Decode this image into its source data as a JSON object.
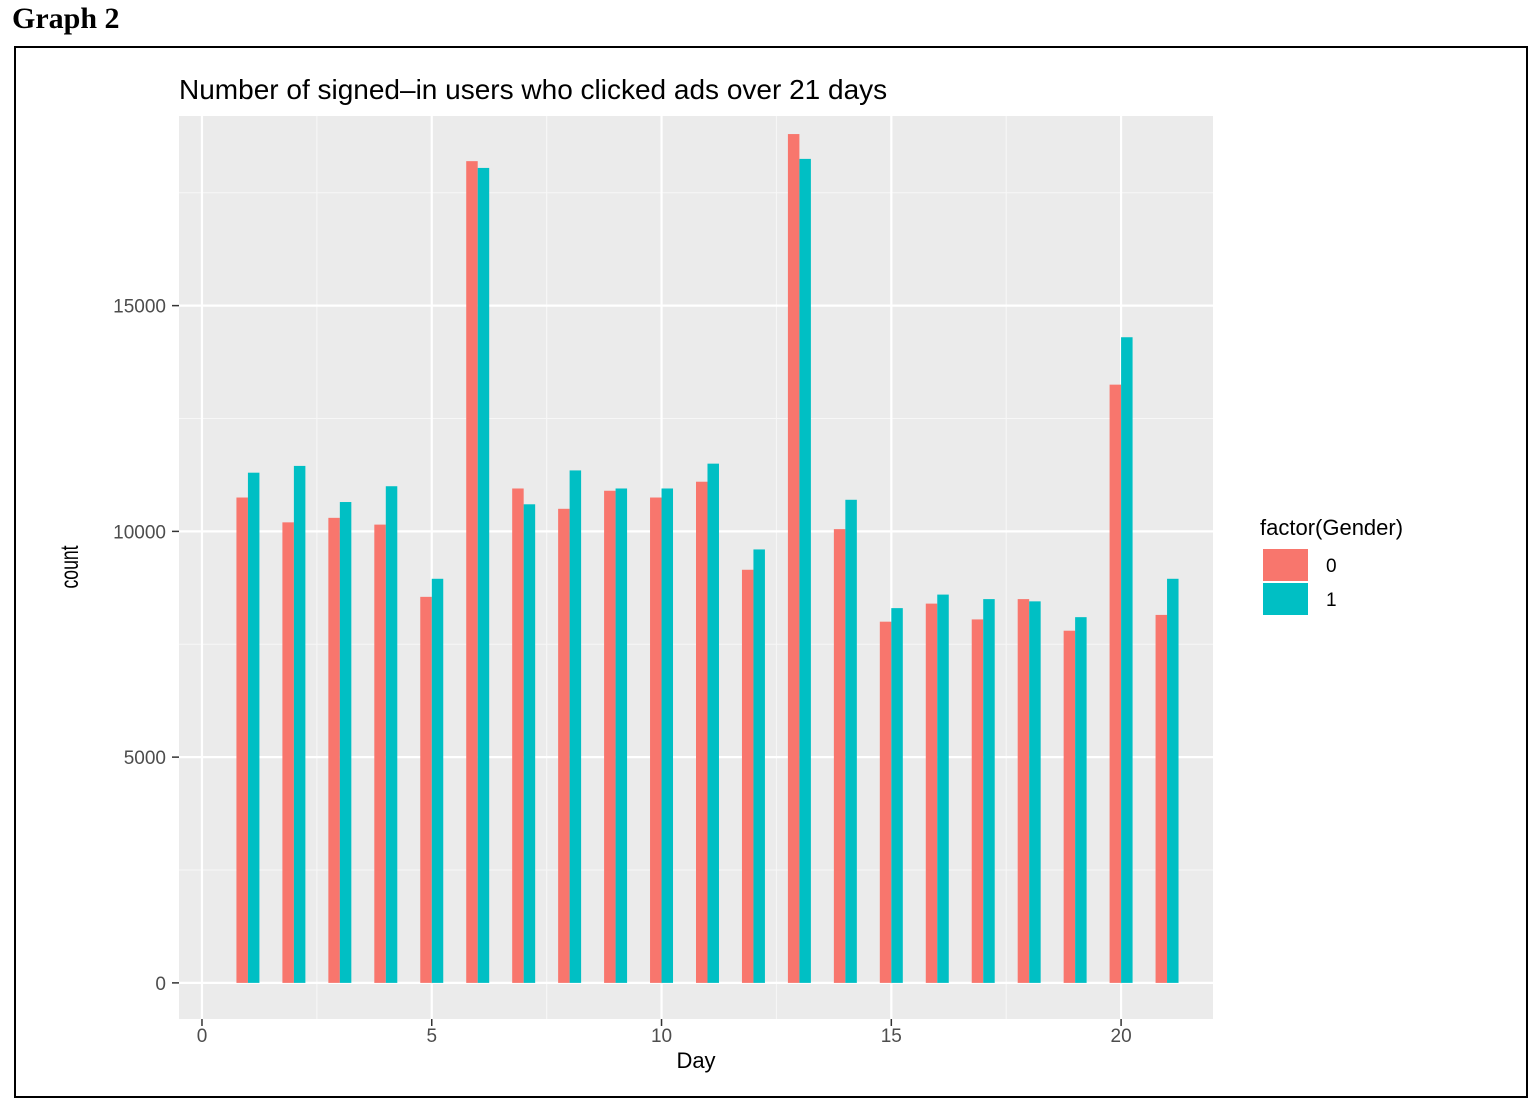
{
  "heading": "Graph 2",
  "colors": {
    "panel": "#ebebeb",
    "gender_0": "#f8766d",
    "gender_1": "#00bfc4"
  },
  "chart_data": {
    "type": "bar",
    "title": "Number of signed–in users who clicked ads over 21 days",
    "xlabel": "Day",
    "ylabel": "count",
    "xlim": [
      -0.5,
      22
    ],
    "ylim": [
      -800,
      19200
    ],
    "x_ticks": [
      0,
      5,
      10,
      15,
      20
    ],
    "y_ticks": [
      0,
      5000,
      10000,
      15000
    ],
    "grid": true,
    "legend": {
      "title": "factor(Gender)",
      "position": "right"
    },
    "x": [
      1,
      2,
      3,
      4,
      5,
      6,
      7,
      8,
      9,
      10,
      11,
      12,
      13,
      14,
      15,
      16,
      17,
      18,
      19,
      20,
      21
    ],
    "series": [
      {
        "name": "0",
        "color": "#f8766d",
        "values": [
          10750,
          10200,
          10300,
          10150,
          8550,
          18200,
          10950,
          10500,
          10900,
          10750,
          11100,
          9150,
          18800,
          10050,
          8000,
          8400,
          8050,
          8500,
          7800,
          13250,
          8150
        ]
      },
      {
        "name": "1",
        "color": "#00bfc4",
        "values": [
          11300,
          11450,
          10650,
          11000,
          8950,
          18050,
          10600,
          11350,
          10950,
          10950,
          11500,
          9600,
          18250,
          10700,
          8300,
          8600,
          8500,
          8450,
          8100,
          14300,
          8950
        ]
      }
    ]
  }
}
